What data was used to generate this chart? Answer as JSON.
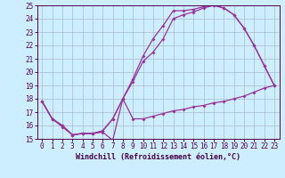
{
  "background_color": "#cceeff",
  "grid_color": "#aabbcc",
  "line_color": "#993399",
  "marker_style": "D",
  "marker_size": 2,
  "line_width": 0.9,
  "xlim": [
    -0.5,
    23.5
  ],
  "ylim": [
    15,
    25
  ],
  "yticks": [
    15,
    16,
    17,
    18,
    19,
    20,
    21,
    22,
    23,
    24,
    25
  ],
  "xticks": [
    0,
    1,
    2,
    3,
    4,
    5,
    6,
    7,
    8,
    9,
    10,
    11,
    12,
    13,
    14,
    15,
    16,
    17,
    18,
    19,
    20,
    21,
    22,
    23
  ],
  "xlabel": "Windchill (Refroidissement éolien,°C)",
  "xlabel_fontsize": 6,
  "tick_fontsize": 5.5,
  "line1_x": [
    0,
    1,
    2,
    3,
    4,
    5,
    6,
    7,
    8,
    9,
    10,
    11,
    12,
    13,
    14,
    15,
    16,
    17,
    18,
    19,
    20,
    21,
    22,
    23
  ],
  "line1_y": [
    17.8,
    16.5,
    15.9,
    15.3,
    15.4,
    15.4,
    15.5,
    14.9,
    18.0,
    16.5,
    16.5,
    16.7,
    16.9,
    17.1,
    17.2,
    17.4,
    17.5,
    17.7,
    17.8,
    18.0,
    18.2,
    18.5,
    18.8,
    19.0
  ],
  "line2_x": [
    0,
    1,
    2,
    3,
    4,
    5,
    6,
    7,
    8,
    9,
    10,
    11,
    12,
    13,
    14,
    15,
    16,
    17,
    18,
    19,
    20,
    21,
    22,
    23
  ],
  "line2_y": [
    17.8,
    16.5,
    16.0,
    15.3,
    15.4,
    15.4,
    15.6,
    16.5,
    18.0,
    19.5,
    21.2,
    22.5,
    23.5,
    24.6,
    24.6,
    24.7,
    24.9,
    25.0,
    24.8,
    24.3,
    23.3,
    22.0,
    20.5,
    19.0
  ],
  "line3_x": [
    0,
    1,
    2,
    3,
    4,
    5,
    6,
    7,
    8,
    9,
    10,
    11,
    12,
    13,
    14,
    15,
    16,
    17,
    18,
    19,
    20,
    21,
    22,
    23
  ],
  "line3_y": [
    17.8,
    16.5,
    16.0,
    15.3,
    15.4,
    15.4,
    15.6,
    16.5,
    18.0,
    19.3,
    20.8,
    21.5,
    22.5,
    24.0,
    24.3,
    24.5,
    24.8,
    25.0,
    24.8,
    24.3,
    23.3,
    22.0,
    20.5,
    19.0
  ]
}
